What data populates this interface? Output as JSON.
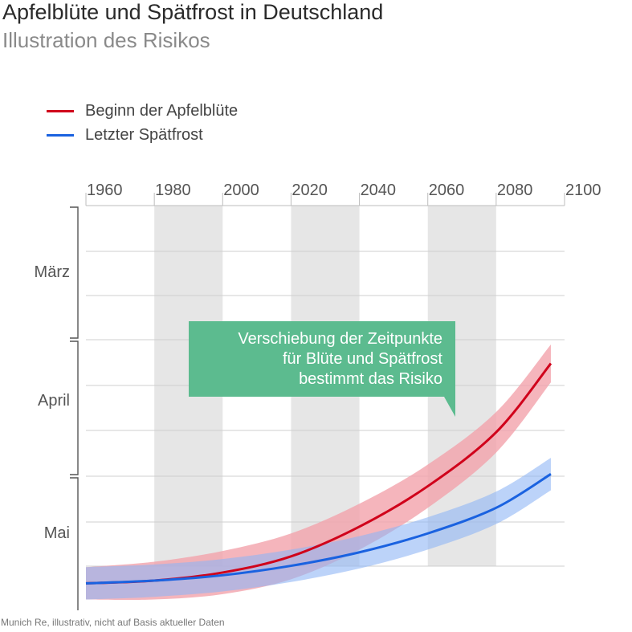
{
  "title": "Apfelblüte und Spätfrost in Deutschland",
  "subtitle": "Illustration des Risikos",
  "source": "Munich Re, illustrativ, nicht auf Basis aktueller Daten",
  "colors": {
    "bloom": "#d0021b",
    "bloom_band": "#f2a3ab",
    "frost": "#1a62e0",
    "frost_band": "#8fb6f5",
    "shade": "#e6e6e6",
    "annotation": "#5cbb8f"
  },
  "annotation": {
    "lines": [
      "Verschiebung der Zeitpunkte",
      "für Blüte und Spätfrost",
      "bestimmt das Risiko"
    ]
  },
  "chart_data": {
    "type": "line",
    "title": "Apfelblüte und Spätfrost in Deutschland",
    "subtitle": "Illustration des Risikos",
    "x_ticks": [
      1960,
      1980,
      2000,
      2020,
      2040,
      2060,
      2080,
      2100
    ],
    "xlim": [
      1960,
      2100
    ],
    "shaded_periods": [
      [
        1980,
        2000
      ],
      [
        2020,
        2040
      ],
      [
        2060,
        2080
      ]
    ],
    "y_categories": [
      "März",
      "April",
      "Mai"
    ],
    "ylim": [
      0,
      3
    ],
    "legend_position": "top-left",
    "series": [
      {
        "name": "Beginn der Apfelblüte",
        "color": "#d0021b",
        "x": [
          1960,
          1980,
          2000,
          2020,
          2040,
          2060,
          2080,
          2100
        ],
        "y": [
          2.8,
          2.78,
          2.72,
          2.6,
          2.38,
          2.08,
          1.68,
          1.17
        ],
        "band_halfwidth": [
          0.12,
          0.14,
          0.16,
          0.17,
          0.17,
          0.16,
          0.15,
          0.14
        ]
      },
      {
        "name": "Letzter Spätfrost",
        "color": "#1a62e0",
        "x": [
          1960,
          1980,
          2000,
          2020,
          2040,
          2060,
          2080,
          2100
        ],
        "y": [
          2.8,
          2.78,
          2.74,
          2.67,
          2.57,
          2.43,
          2.24,
          1.99
        ],
        "band_halfwidth": [
          0.12,
          0.12,
          0.12,
          0.12,
          0.12,
          0.12,
          0.12,
          0.12
        ]
      }
    ]
  }
}
